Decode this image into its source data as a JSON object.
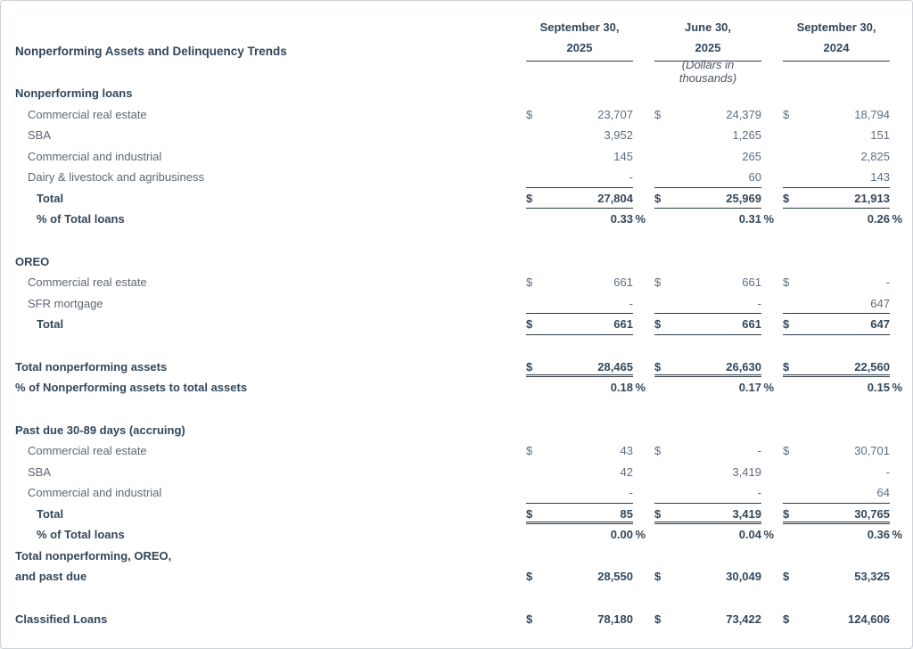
{
  "title": "Nonperforming Assets and Delinquency Trends",
  "units_note": "(Dollars in thousands)",
  "columns": [
    {
      "line1": "September 30,",
      "line2": "2025"
    },
    {
      "line1": "June 30,",
      "line2": "2025"
    },
    {
      "line1": "September 30,",
      "line2": "2024"
    }
  ],
  "colors": {
    "heading_text": "#33475b",
    "body_text": "#5f6670",
    "value_text": "#5e6d80",
    "rule": "#2e3a45",
    "page_border": "#ccd2d8"
  },
  "rows": {
    "npl_header": "Nonperforming loans",
    "npl_cre": {
      "label": "Commercial real estate",
      "d": "$",
      "v1": "23,707",
      "v2": "24,379",
      "v3": "18,794"
    },
    "npl_sba": {
      "label": "SBA",
      "v1": "3,952",
      "v2": "1,265",
      "v3": "151"
    },
    "npl_ci": {
      "label": "Commercial and industrial",
      "v1": "145",
      "v2": "265",
      "v3": "2,825"
    },
    "npl_dairy": {
      "label": "Dairy & livestock and agribusiness",
      "v1": "-",
      "v2": "60",
      "v3": "143"
    },
    "npl_total": {
      "label": "Total",
      "d": "$",
      "v1": "27,804",
      "v2": "25,969",
      "v3": "21,913"
    },
    "npl_pct": {
      "label": "% of Total loans",
      "v1": "0.33",
      "v2": "0.31",
      "v3": "0.26",
      "suffix": "%"
    },
    "oreo_header": "OREO",
    "oreo_cre": {
      "label": "Commercial real estate",
      "d": "$",
      "v1": "661",
      "v2": "661",
      "v3": "-"
    },
    "oreo_sfr": {
      "label": "SFR mortgage",
      "v1": "-",
      "v2": "-",
      "v3": "647"
    },
    "oreo_total": {
      "label": "Total",
      "d": "$",
      "v1": "661",
      "v2": "661",
      "v3": "647"
    },
    "tna": {
      "label": "Total nonperforming assets",
      "d": "$",
      "v1": "28,465",
      "v2": "26,630",
      "v3": "22,560"
    },
    "tna_pct": {
      "label": "% of Nonperforming assets to total assets",
      "v1": "0.18",
      "v2": "0.17",
      "v3": "0.15",
      "suffix": "%"
    },
    "pd_header": "Past due 30-89 days (accruing)",
    "pd_cre": {
      "label": "Commercial real estate",
      "d": "$",
      "v1": "43",
      "v2": "-",
      "v3": "30,701"
    },
    "pd_sba": {
      "label": "SBA",
      "v1": "42",
      "v2": "3,419",
      "v3": "-"
    },
    "pd_ci": {
      "label": "Commercial and industrial",
      "v1": "-",
      "v2": "-",
      "v3": "64"
    },
    "pd_total": {
      "label": "Total",
      "d": "$",
      "v1": "85",
      "v2": "3,419",
      "v3": "30,765"
    },
    "pd_pct": {
      "label": "% of Total loans",
      "v1": "0.00",
      "v2": "0.04",
      "v3": "0.36",
      "suffix": "%"
    },
    "grand": {
      "label_line1": "Total nonperforming, OREO,",
      "label_line2": "and past due",
      "d": "$",
      "v1": "28,550",
      "v2": "30,049",
      "v3": "53,325"
    },
    "classified": {
      "label": "Classified Loans",
      "d": "$",
      "v1": "78,180",
      "v2": "73,422",
      "v3": "124,606"
    }
  }
}
